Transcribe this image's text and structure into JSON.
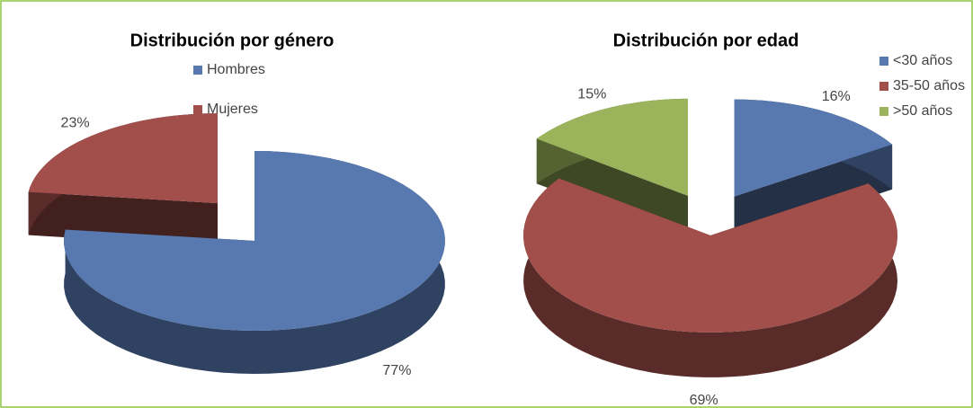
{
  "chart_data": [
    {
      "type": "pie",
      "title": "Distribución por género",
      "categories": [
        "Hombres",
        "Mujeres"
      ],
      "values": [
        77,
        23
      ],
      "value_labels": [
        "77%",
        "23%"
      ],
      "colors": [
        "#5878b0",
        "#a24f4b"
      ],
      "legend": "top"
    },
    {
      "type": "pie",
      "title": "Distribución por edad",
      "categories": [
        "<30 años",
        "35-50 años",
        ">50 años"
      ],
      "values": [
        16,
        69,
        15
      ],
      "value_labels": [
        "16%",
        "69%",
        "15%"
      ],
      "colors": [
        "#5878b0",
        "#a24f4b",
        "#9bb45b"
      ],
      "legend": "top-right"
    }
  ]
}
